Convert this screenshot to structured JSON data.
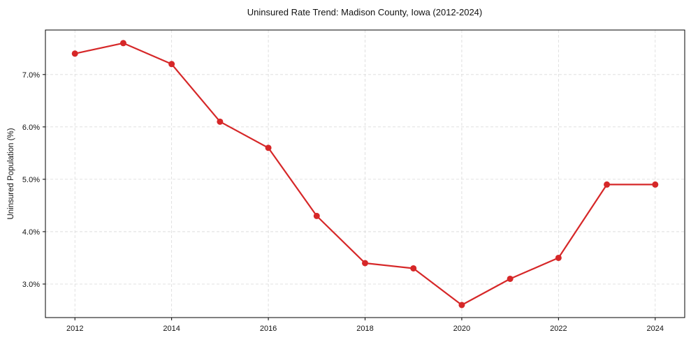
{
  "chart_data": {
    "type": "line",
    "title": "Uninsured Rate Trend: Madison County, Iowa (2012-2024)",
    "xlabel": "",
    "ylabel": "Uninsured Population (%)",
    "x": [
      2012,
      2013,
      2014,
      2015,
      2016,
      2017,
      2018,
      2019,
      2020,
      2021,
      2022,
      2023,
      2024
    ],
    "series": [
      {
        "name": "Uninsured Rate",
        "values": [
          7.4,
          7.6,
          7.2,
          6.1,
          5.6,
          4.3,
          3.4,
          3.3,
          2.6,
          3.1,
          3.5,
          4.9,
          4.9
        ],
        "color": "#d62728",
        "marker": "circle"
      }
    ],
    "xticks": [
      2012,
      2014,
      2016,
      2018,
      2020,
      2022,
      2024
    ],
    "xtick_labels": [
      "2012",
      "2014",
      "2016",
      "2018",
      "2020",
      "2022",
      "2024"
    ],
    "yticks": [
      3.0,
      4.0,
      5.0,
      6.0,
      7.0
    ],
    "ytick_labels": [
      "3.0%",
      "4.0%",
      "5.0%",
      "6.0%",
      "7.0%"
    ],
    "xlim": [
      2011.39,
      2024.61
    ],
    "ylim": [
      2.36,
      7.85
    ],
    "grid": true,
    "legend": null
  },
  "colors": {
    "line": "#d62728",
    "grid": "#d9d9d9",
    "axes": "#000000"
  }
}
